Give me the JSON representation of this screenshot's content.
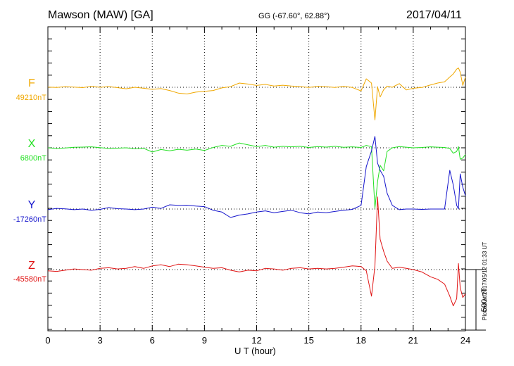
{
  "header": {
    "title": "Mawson (MAW)  [GA]",
    "coords": "GG (-67.60°,  62.88°)",
    "date": "2017/04/11"
  },
  "footer": {
    "plotted": "Plotted at 2017/05/12 01:33 UT"
  },
  "chart_data": {
    "type": "line",
    "title": "Mawson (MAW)  [GA]",
    "xlabel": "U T (hour)",
    "xlim": [
      0,
      24
    ],
    "xticks": [
      "0",
      "3",
      "6",
      "9",
      "12",
      "15",
      "18",
      "21",
      "24"
    ],
    "scale_bar_label": "500 nT",
    "scale_bar_nT": 500,
    "y_units": "nT offset from baseline",
    "grid": true,
    "series": [
      {
        "name": "F",
        "baseline_label": "49210nT",
        "color": "#f0a800",
        "x": [
          0,
          0.5,
          1,
          1.5,
          2,
          2.5,
          3,
          3.5,
          4,
          4.5,
          5,
          5.5,
          6,
          6.5,
          7,
          7.5,
          8,
          8.5,
          9,
          9.5,
          10,
          10.5,
          11,
          11.5,
          12,
          12.5,
          13,
          13.5,
          14,
          14.5,
          15,
          15.5,
          16,
          16.5,
          17,
          17.5,
          18,
          18.3,
          18.6,
          18.8,
          18.95,
          19.1,
          19.3,
          19.5,
          19.8,
          20.2,
          20.6,
          21,
          21.5,
          22,
          22.4,
          22.8,
          23.1,
          23.3,
          23.5,
          23.6,
          23.7,
          23.85,
          24
        ],
        "values": [
          2,
          -1,
          5,
          1,
          -3,
          8,
          0,
          6,
          -3,
          -12,
          0,
          -8,
          -17,
          -11,
          -27,
          -48,
          -55,
          -40,
          -33,
          -27,
          -5,
          5,
          35,
          27,
          15,
          24,
          10,
          17,
          10,
          6,
          -2,
          8,
          5,
          -2,
          8,
          -2,
          -30,
          70,
          35,
          -270,
          5,
          -80,
          -20,
          10,
          0,
          30,
          -22,
          -8,
          -2,
          20,
          35,
          45,
          85,
          110,
          150,
          160,
          125,
          15,
          85
        ]
      },
      {
        "name": "X",
        "baseline_label": "6800nT",
        "color": "#22e022",
        "x": [
          0,
          0.5,
          1,
          1.5,
          2,
          2.5,
          3,
          3.5,
          4,
          4.5,
          5,
          5.5,
          6,
          6.5,
          7,
          7.5,
          8,
          8.5,
          9,
          9.5,
          10,
          10.5,
          11,
          11.5,
          12,
          12.5,
          13,
          13.5,
          14,
          14.5,
          15,
          15.5,
          16,
          16.5,
          17,
          17.5,
          18,
          18.3,
          18.6,
          18.8,
          18.95,
          19.1,
          19.3,
          19.5,
          19.8,
          20.2,
          20.6,
          21,
          21.5,
          22,
          22.4,
          22.8,
          23.1,
          23.3,
          23.5,
          23.6,
          23.7,
          23.85,
          24
        ],
        "values": [
          0,
          -5,
          -2,
          4,
          6,
          8,
          2,
          -5,
          -3,
          0,
          -8,
          -4,
          -35,
          -14,
          -25,
          -12,
          -20,
          -10,
          -22,
          3,
          20,
          12,
          40,
          25,
          10,
          20,
          5,
          12,
          8,
          12,
          3,
          10,
          6,
          12,
          4,
          8,
          3,
          20,
          10,
          -500,
          -280,
          -145,
          -190,
          -30,
          0,
          10,
          5,
          0,
          3,
          8,
          5,
          3,
          -5,
          -45,
          -30,
          10,
          -95,
          -85,
          -55
        ]
      },
      {
        "name": "Y",
        "baseline_label": "-17260nT",
        "color": "#1414cc",
        "x": [
          0,
          0.5,
          1,
          1.5,
          2,
          2.5,
          3,
          3.5,
          4,
          4.5,
          5,
          5.5,
          6,
          6.5,
          7,
          7.5,
          8,
          8.5,
          9,
          9.5,
          10,
          10.5,
          11,
          11.5,
          12,
          12.5,
          13,
          13.5,
          14,
          14.5,
          15,
          15.5,
          16,
          16.5,
          17,
          17.5,
          18,
          18.3,
          18.6,
          18.8,
          18.95,
          19.1,
          19.3,
          19.5,
          19.8,
          20.2,
          20.6,
          21,
          21.5,
          22,
          22.4,
          22.8,
          23.1,
          23.3,
          23.5,
          23.6,
          23.7,
          23.85,
          24
        ],
        "values": [
          -5,
          5,
          2,
          -5,
          0,
          -10,
          -3,
          12,
          3,
          0,
          -5,
          0,
          15,
          5,
          35,
          30,
          32,
          25,
          20,
          -10,
          -25,
          -70,
          -50,
          -40,
          -25,
          -15,
          -30,
          -20,
          -10,
          -30,
          -40,
          -25,
          -30,
          -20,
          -10,
          -3,
          30,
          350,
          480,
          600,
          380,
          320,
          270,
          130,
          30,
          -5,
          0,
          0,
          -3,
          0,
          0,
          0,
          320,
          200,
          30,
          0,
          290,
          180,
          110
        ]
      },
      {
        "name": "Z",
        "baseline_label": "-45580nT",
        "color": "#e01414",
        "x": [
          0,
          0.5,
          1,
          1.5,
          2,
          2.5,
          3,
          3.5,
          4,
          4.5,
          5,
          5.5,
          6,
          6.5,
          7,
          7.5,
          8,
          8.5,
          9,
          9.5,
          10,
          10.5,
          11,
          11.5,
          12,
          12.5,
          13,
          13.5,
          14,
          14.5,
          15,
          15.5,
          16,
          16.5,
          17,
          17.5,
          18,
          18.3,
          18.6,
          18.8,
          18.95,
          19.1,
          19.3,
          19.5,
          19.8,
          20.2,
          20.6,
          21,
          21.5,
          22,
          22.4,
          22.8,
          23.1,
          23.3,
          23.5,
          23.6,
          23.7,
          23.85,
          24
        ],
        "values": [
          -10,
          -15,
          -5,
          5,
          0,
          -5,
          10,
          15,
          5,
          10,
          25,
          10,
          30,
          40,
          25,
          45,
          40,
          30,
          20,
          10,
          15,
          -5,
          -20,
          -5,
          -10,
          10,
          5,
          -5,
          10,
          15,
          5,
          10,
          5,
          10,
          20,
          30,
          25,
          -10,
          -220,
          30,
          600,
          250,
          150,
          70,
          10,
          20,
          10,
          0,
          -20,
          -60,
          -80,
          -120,
          -220,
          -300,
          -240,
          50,
          -150,
          -230,
          -200
        ]
      }
    ]
  }
}
